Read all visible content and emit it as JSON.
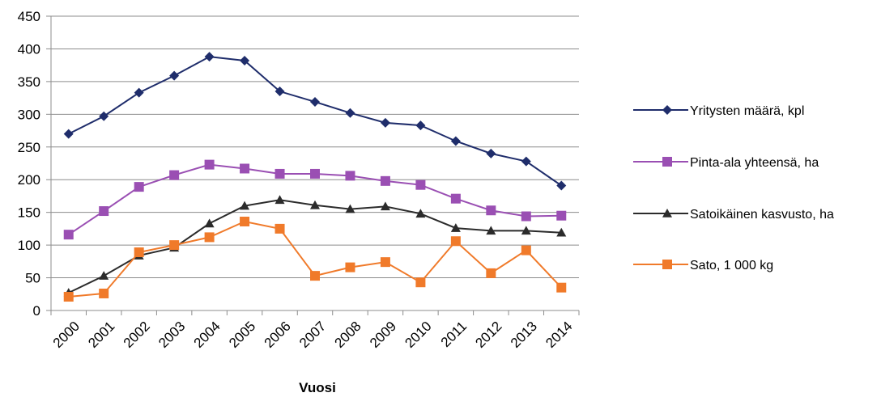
{
  "chart_data": {
    "type": "line",
    "title": "",
    "xlabel": "Vuosi",
    "ylabel": "",
    "ylim": [
      0,
      450
    ],
    "yticks": [
      0,
      50,
      100,
      150,
      200,
      250,
      300,
      350,
      400,
      450
    ],
    "grid": "horizontal",
    "legend_position": "right",
    "categories": [
      "2000",
      "2001",
      "2002",
      "2003",
      "2004",
      "2005",
      "2006",
      "2007",
      "2008",
      "2009",
      "2010",
      "2011",
      "2012",
      "2013",
      "2014"
    ],
    "series": [
      {
        "name": "Yritysten määrä, kpl",
        "color": "#1f2d6b",
        "marker": "diamond",
        "values": [
          270,
          297,
          333,
          359,
          388,
          382,
          335,
          319,
          302,
          287,
          283,
          259,
          240,
          228,
          191
        ]
      },
      {
        "name": "Pinta-ala yhteensä, ha",
        "color": "#9a4fb3",
        "marker": "square",
        "values": [
          116,
          152,
          189,
          207,
          223,
          217,
          209,
          209,
          206,
          198,
          192,
          171,
          153,
          144,
          145
        ]
      },
      {
        "name": "Satoikäinen kasvusto, ha",
        "color": "#2b2b2b",
        "marker": "triangle",
        "values": [
          27,
          53,
          84,
          96,
          133,
          160,
          169,
          161,
          155,
          159,
          148,
          126,
          122,
          122,
          119
        ]
      },
      {
        "name": "Sato, 1 000 kg",
        "color": "#f07a2a",
        "marker": "square",
        "values": [
          21,
          26,
          89,
          100,
          112,
          136,
          125,
          53,
          66,
          74,
          43,
          106,
          57,
          92,
          35
        ]
      }
    ]
  }
}
